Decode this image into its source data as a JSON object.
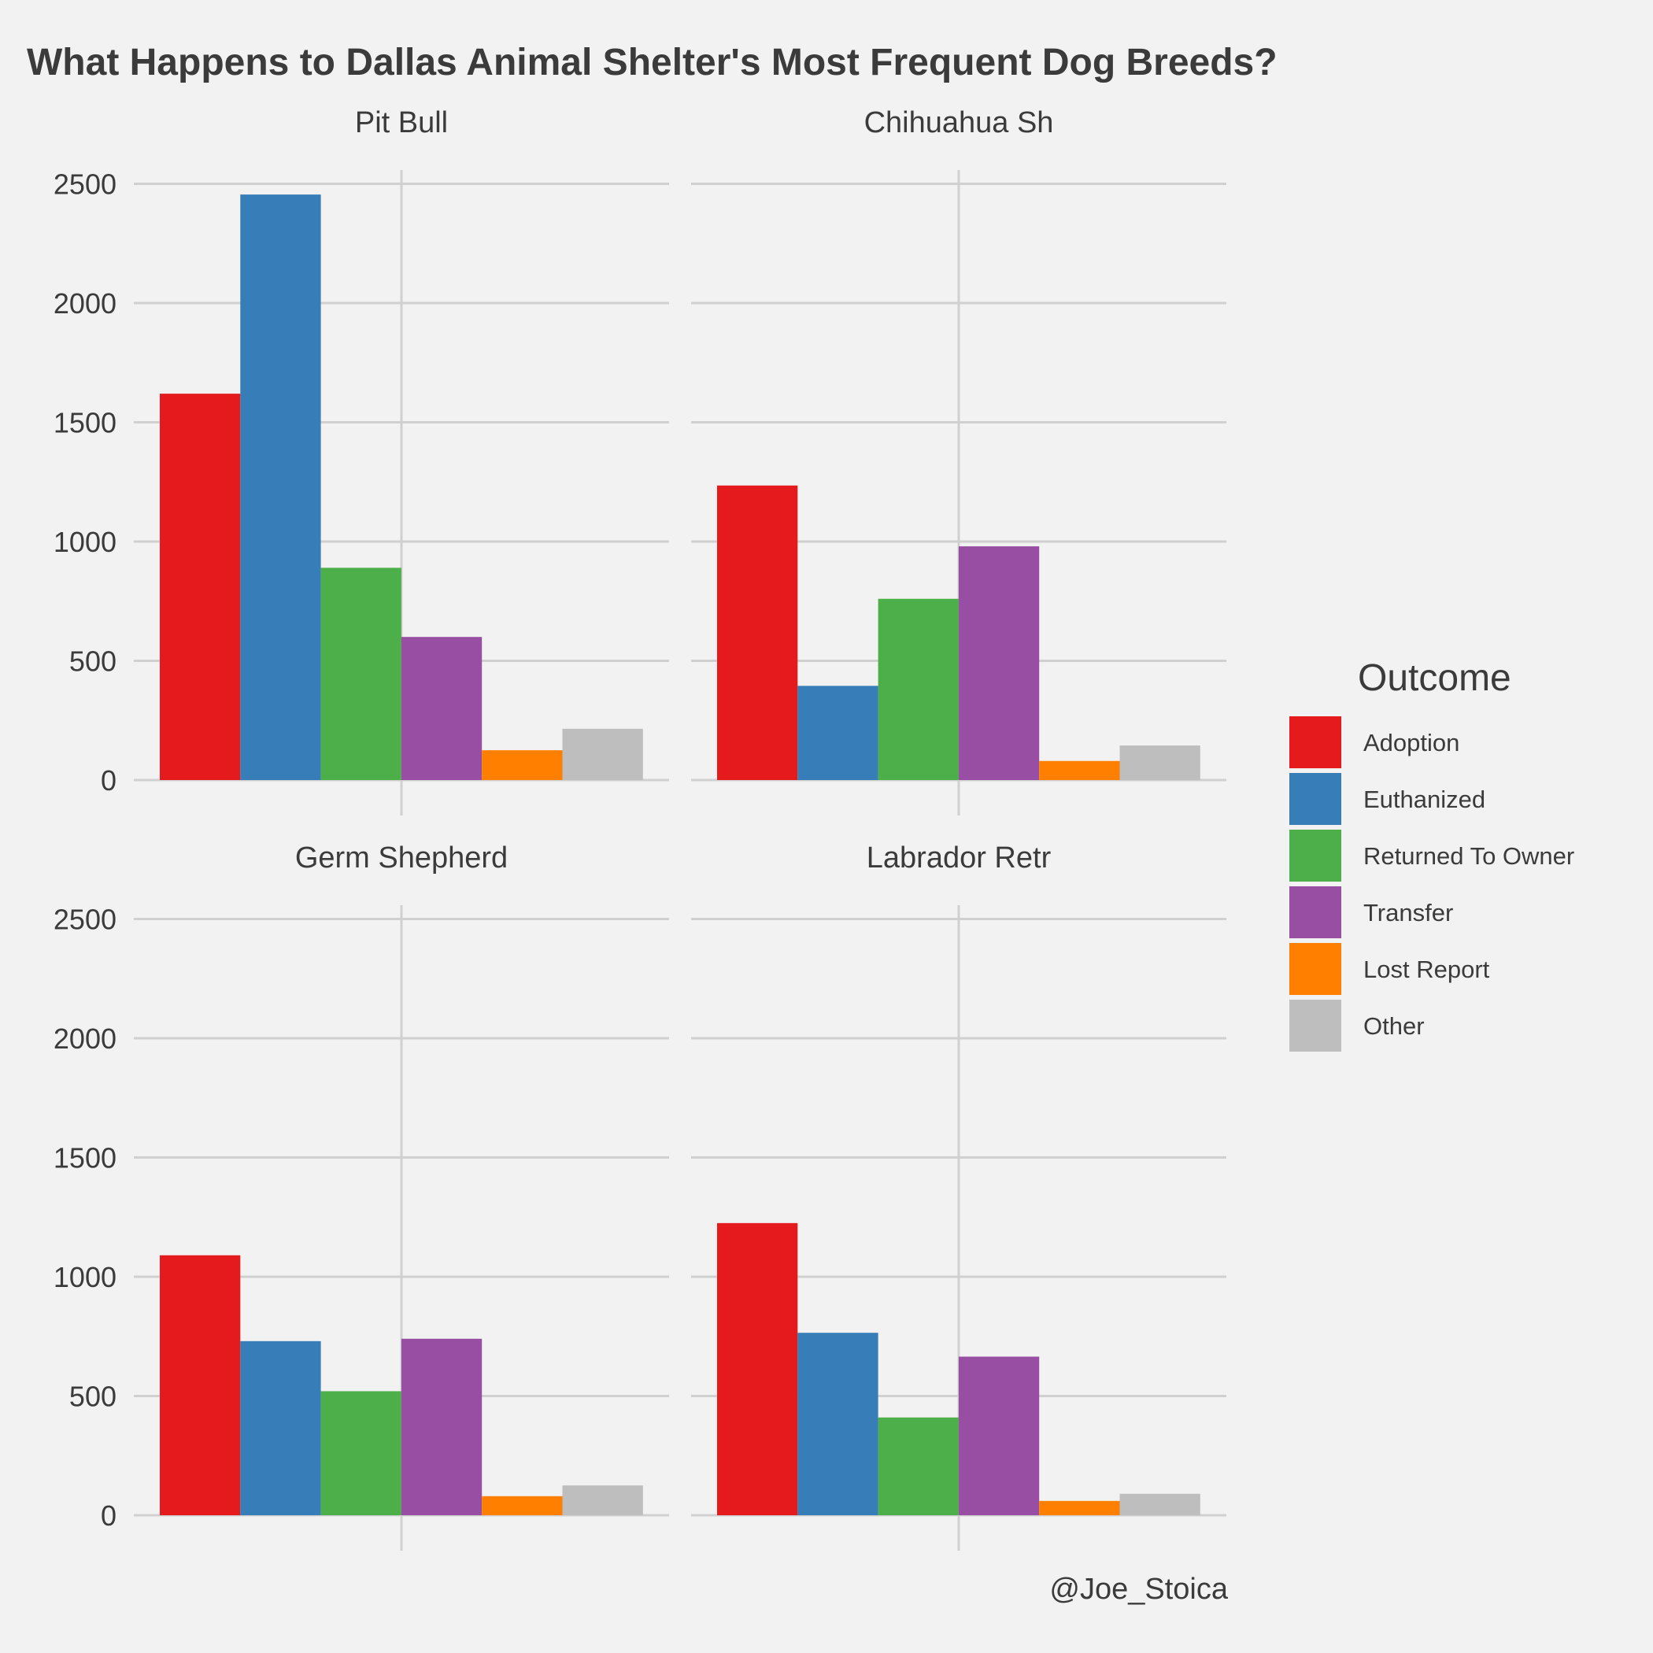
{
  "chart_data": {
    "type": "bar",
    "title": "What Happens to Dallas Animal Shelter's Most Frequent Dog Breeds?",
    "caption": "@Joe_Stoica",
    "xlabel": "",
    "ylabel": "",
    "ylim": [
      0,
      2600
    ],
    "y_ticks": [
      0,
      500,
      1000,
      1500,
      2000,
      2500
    ],
    "grid": true,
    "legend": {
      "title": "Outcome",
      "placement": "right",
      "entries": [
        "Adoption",
        "Euthanized",
        "Returned To Owner",
        "Transfer",
        "Lost Report",
        "Other"
      ]
    },
    "colors": {
      "Adoption": "#e41a1c",
      "Euthanized": "#377eb8",
      "Returned To Owner": "#4daf4a",
      "Transfer": "#984ea3",
      "Lost Report": "#ff7f00",
      "Other": "#bebebe"
    },
    "categories": [
      "Adoption",
      "Euthanized",
      "Returned To Owner",
      "Transfer",
      "Lost Report",
      "Other"
    ],
    "facets": [
      {
        "name": "Pit Bull",
        "values": [
          1620,
          2455,
          890,
          600,
          125,
          215
        ]
      },
      {
        "name": "Chihuahua Sh",
        "values": [
          1235,
          395,
          760,
          980,
          80,
          145
        ]
      },
      {
        "name": "Germ Shepherd",
        "values": [
          1090,
          730,
          520,
          740,
          80,
          125
        ]
      },
      {
        "name": "Labrador Retr",
        "values": [
          1225,
          765,
          410,
          665,
          60,
          90
        ]
      }
    ]
  }
}
